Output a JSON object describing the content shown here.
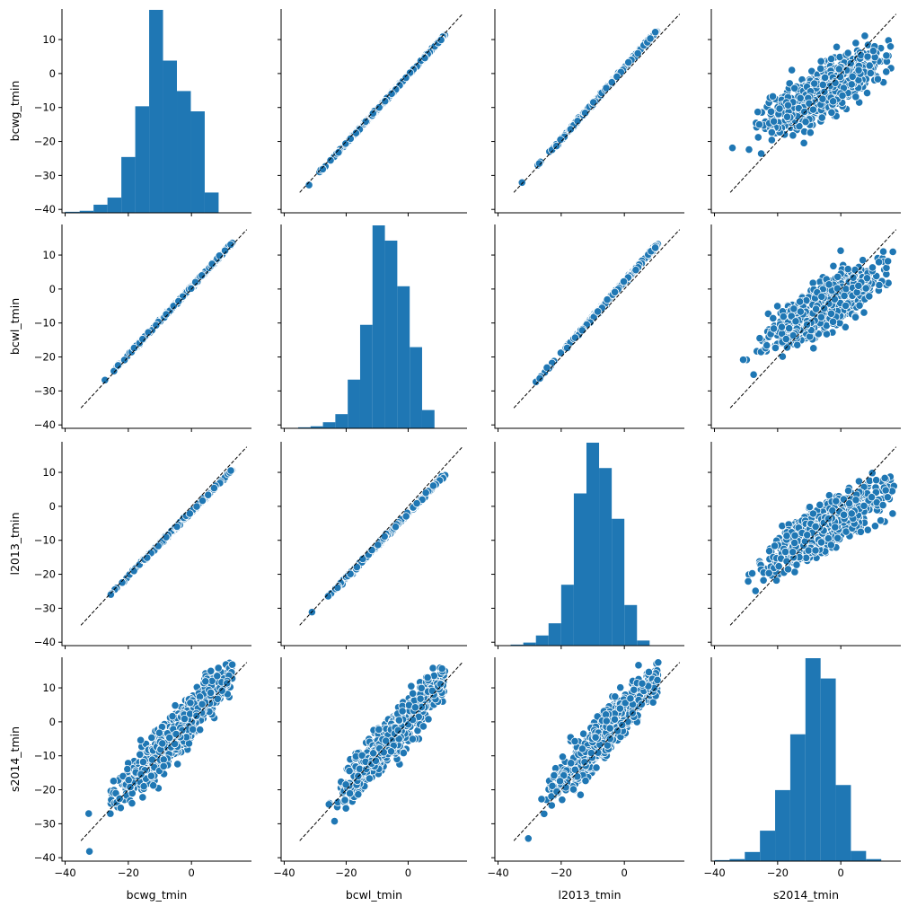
{
  "chart_data": {
    "type": "scatter",
    "variables": [
      "bcwg_tmin",
      "bcwl_tmin",
      "l2013_tmin",
      "s2014_tmin"
    ],
    "layout": "4x4 pair plot; histograms on diagonal, scatter off-diagonal, dashed 1:1 reference line in scatter panels, no grid, no legend",
    "colors": {
      "marker": "#1f77b4",
      "marker_edge": "#ffffff",
      "reference_line": "#000000",
      "axis": "#000000"
    },
    "axes": {
      "bcwg_tmin": {
        "lim": [
          -41,
          19
        ],
        "ticks": [
          10,
          0,
          -10,
          -20,
          -30,
          -40
        ],
        "tick_labels": [
          "10",
          "0",
          "−10",
          "−20",
          "−30",
          "−40"
        ]
      },
      "bcwl_tmin": {
        "lim": [
          -41,
          19
        ],
        "ticks": [
          10,
          0,
          -10,
          -20,
          -30,
          -40
        ],
        "tick_labels": [
          "10",
          "0",
          "−10",
          "−20",
          "−30",
          "−40"
        ]
      },
      "l2013_tmin": {
        "lim": [
          -41,
          19
        ],
        "ticks": [
          10,
          0,
          -10,
          -20,
          -30,
          -40
        ],
        "tick_labels": [
          "10",
          "0",
          "−10",
          "−20",
          "−30",
          "−40"
        ]
      },
      "s2014_tmin": {
        "lim": [
          -41,
          19
        ],
        "ticks": [
          -40,
          -20,
          0
        ],
        "tick_labels": [
          "−40",
          "−20",
          "0"
        ]
      }
    },
    "x_axis_ticks": [
      -40,
      -20,
      0
    ],
    "x_axis_tick_labels": [
      "−40",
      "−20",
      "0"
    ],
    "histograms": [
      {
        "variable": "bcwg_tmin",
        "bin_edges": [
          -40,
          -35.4,
          -31,
          -26.6,
          -22.2,
          -17.8,
          -13.4,
          -9,
          -4.6,
          -0.2,
          4.2,
          8.6,
          13
        ],
        "counts": [
          1,
          2,
          8,
          15,
          55,
          105,
          200,
          150,
          120,
          100,
          20,
          0
        ]
      },
      {
        "variable": "bcwl_tmin",
        "bin_edges": [
          -35.5,
          -31.5,
          -27.5,
          -23.5,
          -19.5,
          -15.5,
          -11.5,
          -7.5,
          -3.5,
          0.5,
          4.5,
          8.5,
          12.5
        ],
        "counts": [
          1,
          2,
          6,
          14,
          48,
          102,
          200,
          185,
          140,
          80,
          18,
          0
        ]
      },
      {
        "variable": "l2013_tmin",
        "bin_edges": [
          -36,
          -32,
          -28,
          -24,
          -20,
          -16,
          -12,
          -8,
          -4,
          0,
          4,
          8,
          12
        ],
        "counts": [
          1,
          3,
          10,
          22,
          60,
          150,
          200,
          175,
          125,
          40,
          5,
          0
        ]
      },
      {
        "variable": "s2014_tmin",
        "bin_edges": [
          -40,
          -35.2,
          -30.4,
          -25.6,
          -20.8,
          -16,
          -11.2,
          -6.4,
          -1.6,
          3.2,
          8,
          12.8,
          17.6
        ],
        "counts": [
          1,
          2,
          9,
          30,
          70,
          125,
          200,
          180,
          75,
          10,
          2,
          0
        ]
      }
    ],
    "relations": [
      {
        "x": "bcwg_tmin",
        "y": "bcwl_tmin",
        "slope": 1.0,
        "intercept": 0.6,
        "noise": 0.35,
        "x_range": [
          -33,
          13
        ]
      },
      {
        "x": "bcwg_tmin",
        "y": "l2013_tmin",
        "slope": 0.95,
        "intercept": -1.5,
        "noise": 0.4,
        "x_range": [
          -34,
          13
        ]
      },
      {
        "x": "bcwg_tmin",
        "y": "s2014_tmin",
        "slope": 1.0,
        "intercept": 1.5,
        "noise": 5.5,
        "x_range": [
          -33,
          13
        ]
      },
      {
        "x": "bcwl_tmin",
        "y": "bcwg_tmin",
        "slope": 1.0,
        "intercept": -0.6,
        "noise": 0.35,
        "x_range": [
          -32,
          12
        ]
      },
      {
        "x": "bcwl_tmin",
        "y": "l2013_tmin",
        "slope": 0.95,
        "intercept": -2.0,
        "noise": 0.45,
        "x_range": [
          -33,
          12
        ]
      },
      {
        "x": "bcwl_tmin",
        "y": "s2014_tmin",
        "slope": 1.0,
        "intercept": 1.0,
        "noise": 5.5,
        "x_range": [
          -33,
          12
        ]
      },
      {
        "x": "l2013_tmin",
        "y": "bcwg_tmin",
        "slope": 1.05,
        "intercept": 1.6,
        "noise": 0.4,
        "x_range": [
          -34,
          11
        ]
      },
      {
        "x": "l2013_tmin",
        "y": "bcwl_tmin",
        "slope": 1.05,
        "intercept": 2.1,
        "noise": 0.45,
        "x_range": [
          -34,
          11
        ]
      },
      {
        "x": "l2013_tmin",
        "y": "s2014_tmin",
        "slope": 1.0,
        "intercept": 2.5,
        "noise": 5.5,
        "x_range": [
          -34,
          11
        ]
      },
      {
        "x": "s2014_tmin",
        "y": "bcwg_tmin",
        "slope": 0.55,
        "intercept": -2.0,
        "noise": 6.0,
        "x_range": [
          -38,
          17
        ]
      },
      {
        "x": "s2014_tmin",
        "y": "bcwl_tmin",
        "slope": 0.55,
        "intercept": -2.5,
        "noise": 6.0,
        "x_range": [
          -38,
          17
        ]
      },
      {
        "x": "s2014_tmin",
        "y": "l2013_tmin",
        "slope": 0.55,
        "intercept": -3.5,
        "noise": 5.8,
        "x_range": [
          -38,
          17
        ]
      }
    ],
    "reference_line": {
      "slope": 1,
      "intercept": 0,
      "style": "dashed"
    }
  }
}
